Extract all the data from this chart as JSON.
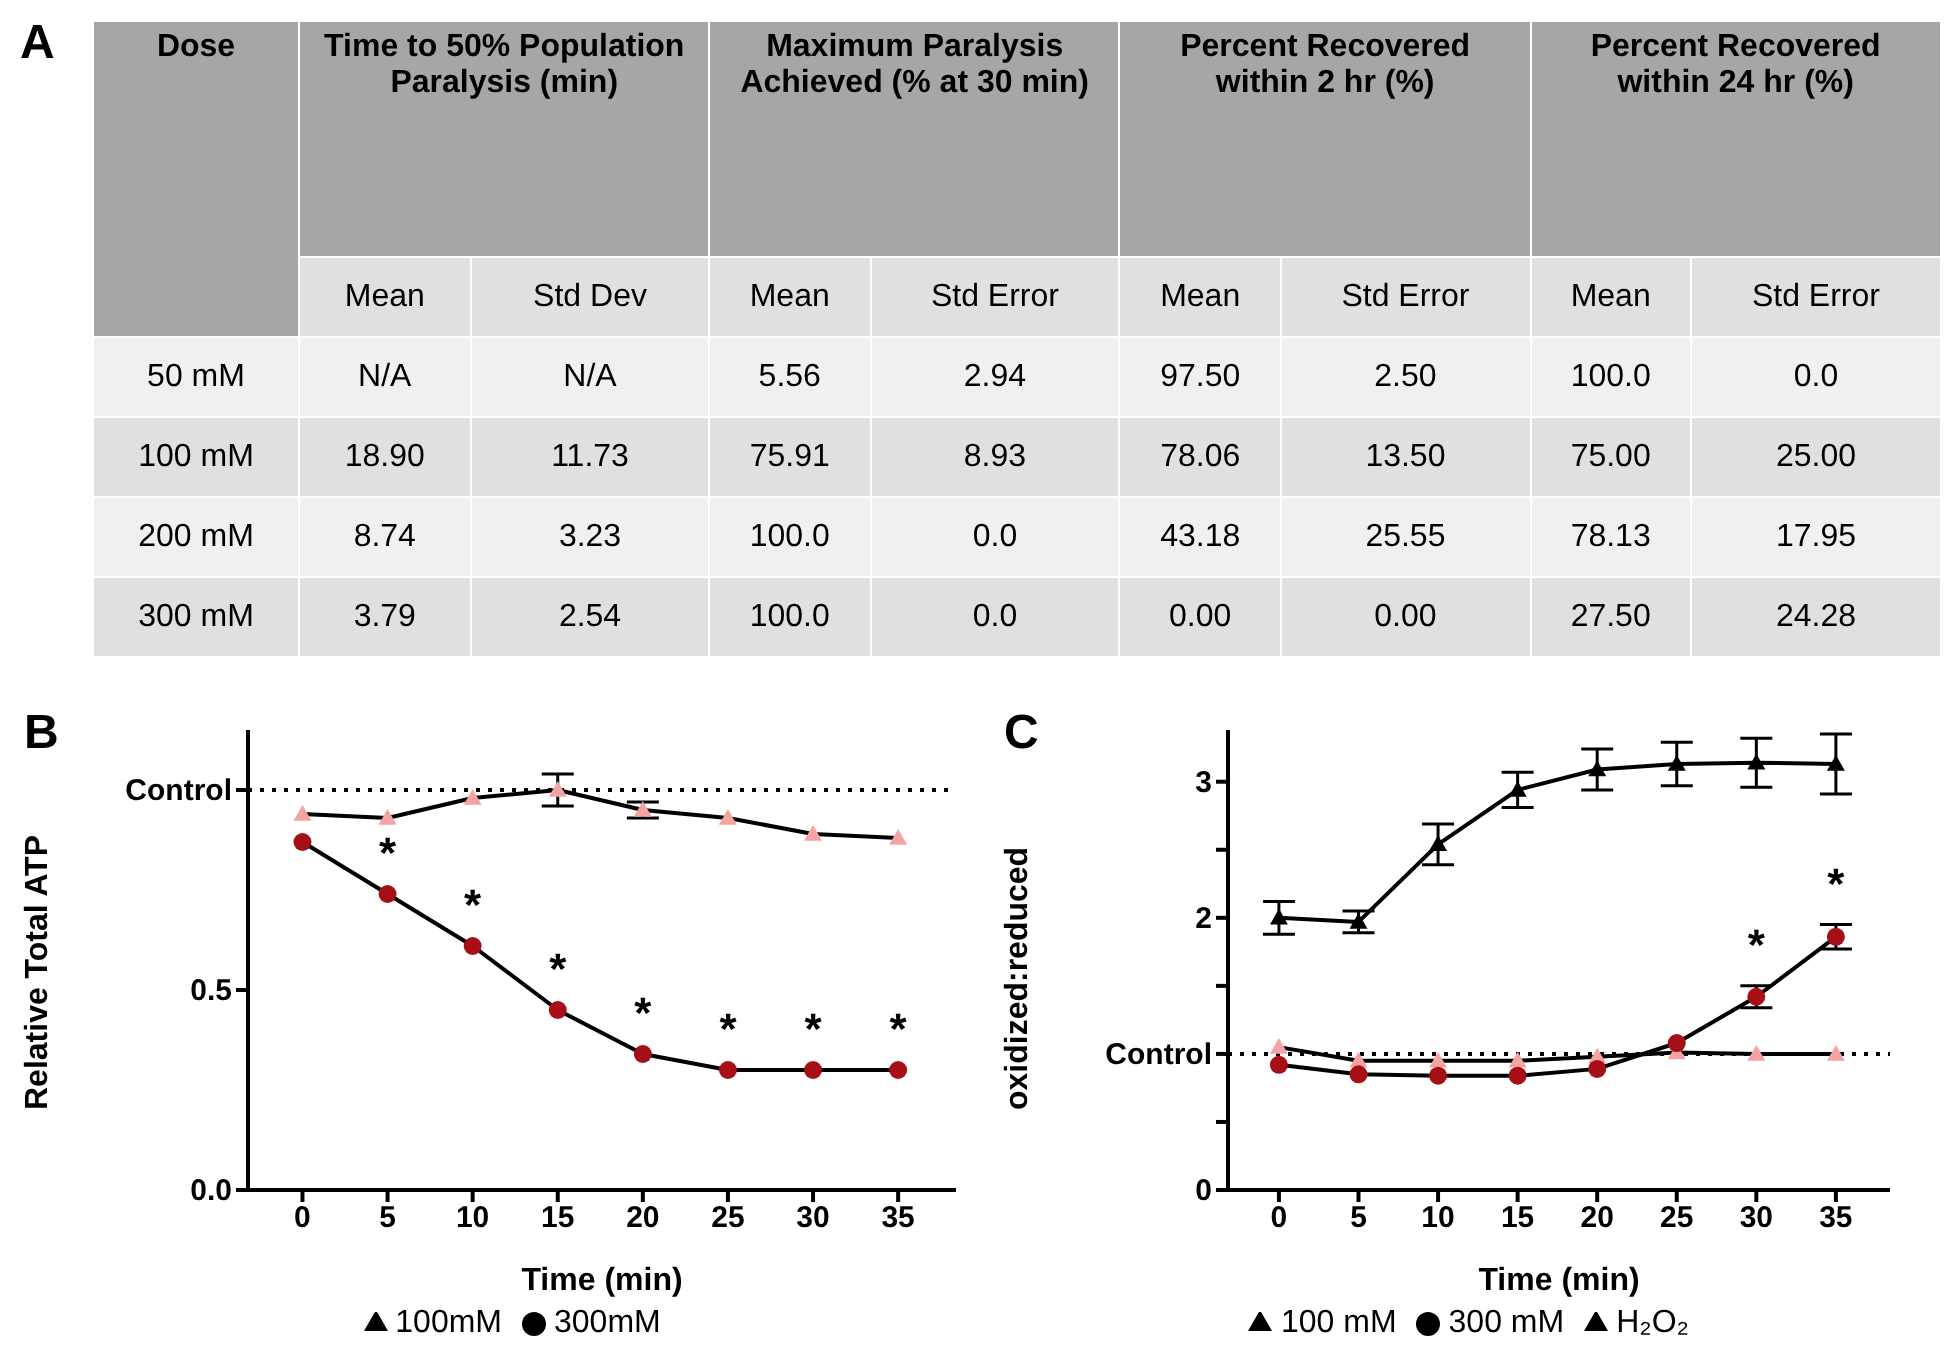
{
  "chart_data": [
    {
      "type": "other",
      "title": "A",
      "ylabel": "Dose",
      "annotations": [
        "Time to 50% Population Paralysis (min)",
        "Maximum Paralysis Achieved (% at 30 min)",
        "Percent Recovered within 2 hr (%)",
        "Percent Recovered within 24 hr (%)"
      ],
      "categories": [
        "Mean",
        "Std Dev",
        "Mean",
        "Std Error",
        "Mean",
        "Std Error",
        "Mean",
        "Std Error"
      ],
      "y_categories": [
        "50 mM",
        "100 mM",
        "200 mM",
        "300 mM"
      ],
      "cell_labels": [
        [
          "N/A",
          "N/A",
          "5.56",
          "2.94",
          "97.50",
          "2.50",
          "100.0",
          "0.0"
        ],
        [
          "18.90",
          "11.73",
          "75.91",
          "8.93",
          "78.06",
          "13.50",
          "75.00",
          "25.00"
        ],
        [
          "8.74",
          "3.23",
          "100.0",
          "0.0",
          "43.18",
          "25.55",
          "78.13",
          "17.95"
        ],
        [
          "3.79",
          "2.54",
          "100.0",
          "0.0",
          "0.00",
          "0.00",
          "27.50",
          "24.28"
        ]
      ]
    },
    {
      "type": "line",
      "title": "B",
      "xlabel": "Time (min)",
      "ylabel": "Relative Total ATP",
      "x": [
        0,
        5,
        10,
        15,
        20,
        25,
        30,
        35
      ],
      "xlim": [
        -3.2,
        38.4
      ],
      "xticks": [
        0,
        5,
        10,
        15,
        20,
        25,
        30,
        35
      ],
      "ylim": [
        0,
        1.15
      ],
      "yticks": [
        {
          "value": 0,
          "label": "0.0"
        },
        {
          "value": 0.5,
          "label": "0.5"
        },
        {
          "value": 1,
          "label": "Control"
        }
      ],
      "legend": "bottom",
      "ref_lines": [
        {
          "axis": "y",
          "value": 1,
          "color": "#000000",
          "line_style": "dotted"
        }
      ],
      "series": [
        {
          "name": "100mM",
          "color": "#f4a3a3",
          "marker": "triangle",
          "values": [
            0.94,
            0.93,
            0.98,
            1.0,
            0.95,
            0.93,
            0.89,
            0.88
          ],
          "errors": [
            null,
            null,
            null,
            0.04,
            0.02,
            null,
            null,
            null
          ]
        },
        {
          "name": "300mM",
          "color": "#a50f15",
          "marker": "circle",
          "values": [
            0.87,
            0.74,
            0.61,
            0.45,
            0.34,
            0.3,
            0.3,
            0.3
          ],
          "errors": [
            null,
            null,
            null,
            null,
            null,
            null,
            null,
            null
          ]
        }
      ],
      "annotations": [
        "*",
        "*",
        "*",
        "*",
        "*",
        "*",
        "*"
      ]
    },
    {
      "type": "line",
      "title": "C",
      "xlabel": "Time (min)",
      "ylabel": "oxidized:reduced",
      "x": [
        0,
        5,
        10,
        15,
        20,
        25,
        30,
        35
      ],
      "xlim": [
        -3.2,
        38.4
      ],
      "xticks": [
        0,
        5,
        10,
        15,
        20,
        25,
        30,
        35
      ],
      "ylim": [
        0,
        3.38
      ],
      "yticks": [
        0,
        {
          "value": 0.5,
          "label": null
        },
        {
          "value": 1,
          "label": "Control"
        },
        {
          "value": 1.5,
          "label": null
        },
        2,
        {
          "value": 2.5,
          "label": null
        },
        3
      ],
      "legend": "bottom",
      "ref_lines": [
        {
          "axis": "y",
          "value": 1,
          "color": "#000000",
          "line_style": "dotted"
        }
      ],
      "series": [
        {
          "name": "100 mM",
          "color": "#f4a3a3",
          "marker": "triangle",
          "values": [
            1.05,
            0.95,
            0.95,
            0.95,
            0.98,
            1.01,
            1.0,
            1.0
          ],
          "errors": [
            null,
            null,
            null,
            null,
            null,
            null,
            null,
            null
          ]
        },
        {
          "name": "300 mM",
          "color": "#a50f15",
          "marker": "circle",
          "values": [
            0.92,
            0.85,
            0.84,
            0.84,
            0.89,
            1.08,
            1.42,
            1.86
          ],
          "errors": [
            null,
            null,
            null,
            null,
            null,
            null,
            0.08,
            0.09
          ]
        },
        {
          "name": "H₂O₂",
          "color": "#000000",
          "marker": "triangle",
          "values": [
            2.0,
            1.97,
            2.54,
            2.94,
            3.09,
            3.13,
            3.14,
            3.13
          ],
          "errors": [
            0.12,
            0.08,
            0.15,
            0.13,
            0.15,
            0.16,
            0.18,
            0.22
          ]
        }
      ],
      "annotations": [
        "*",
        "*"
      ]
    }
  ]
}
